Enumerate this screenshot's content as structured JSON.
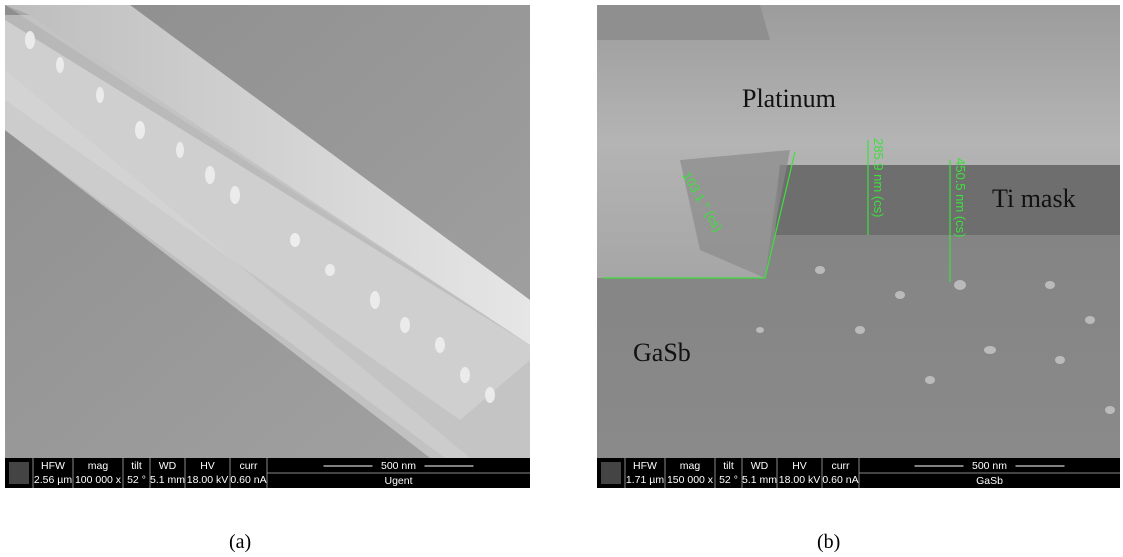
{
  "info_headers": [
    "HFW",
    "mag",
    "tilt",
    "WD",
    "HV",
    "curr"
  ],
  "panels": [
    {
      "info_values": [
        "2.56 µm",
        "100 000 x",
        "52 °",
        "5.1 mm",
        "18.00 kV",
        "0.60 nA"
      ],
      "scale": "500 nm",
      "label": "Ugent",
      "caption": "(a)"
    },
    {
      "info_values": [
        "1.71 µm",
        "150 000 x",
        "52 °",
        "5.1 mm",
        "18.00 kV",
        "0.60 nA"
      ],
      "scale": "500 nm",
      "label": "GaSb",
      "caption": "(b)",
      "annotations": {
        "platinum": "Platinum",
        "ti_mask": "Ti mask",
        "gasb": "GaSb"
      },
      "measurements": [
        "103.1 ° (cs)",
        "285.9 nm (cs)",
        "450.5 nm (cs)"
      ]
    }
  ]
}
